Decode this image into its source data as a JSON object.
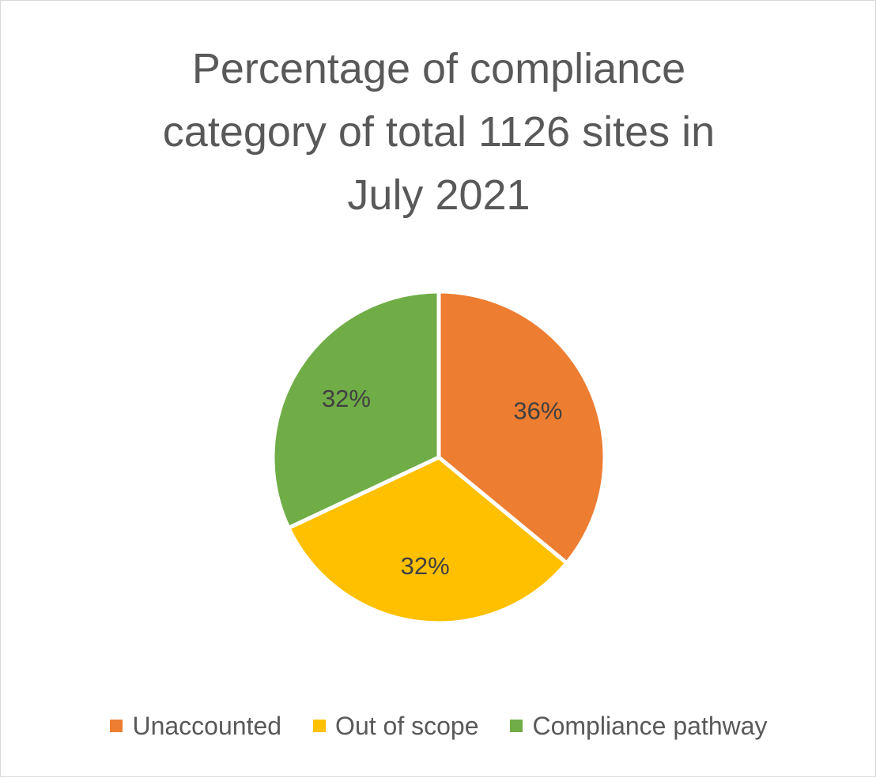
{
  "chart_data": {
    "type": "pie",
    "title_lines": [
      "Percentage of compliance",
      "category of total 1126 sites in",
      "July 2021"
    ],
    "categories": [
      "Unaccounted",
      "Out of scope",
      "Compliance pathway"
    ],
    "values": [
      36,
      32,
      32
    ],
    "labels": [
      "36%",
      "32%",
      "32%"
    ],
    "colors": [
      "#ED7D31",
      "#FFC000",
      "#70AD47"
    ],
    "legend_position": "bottom"
  }
}
